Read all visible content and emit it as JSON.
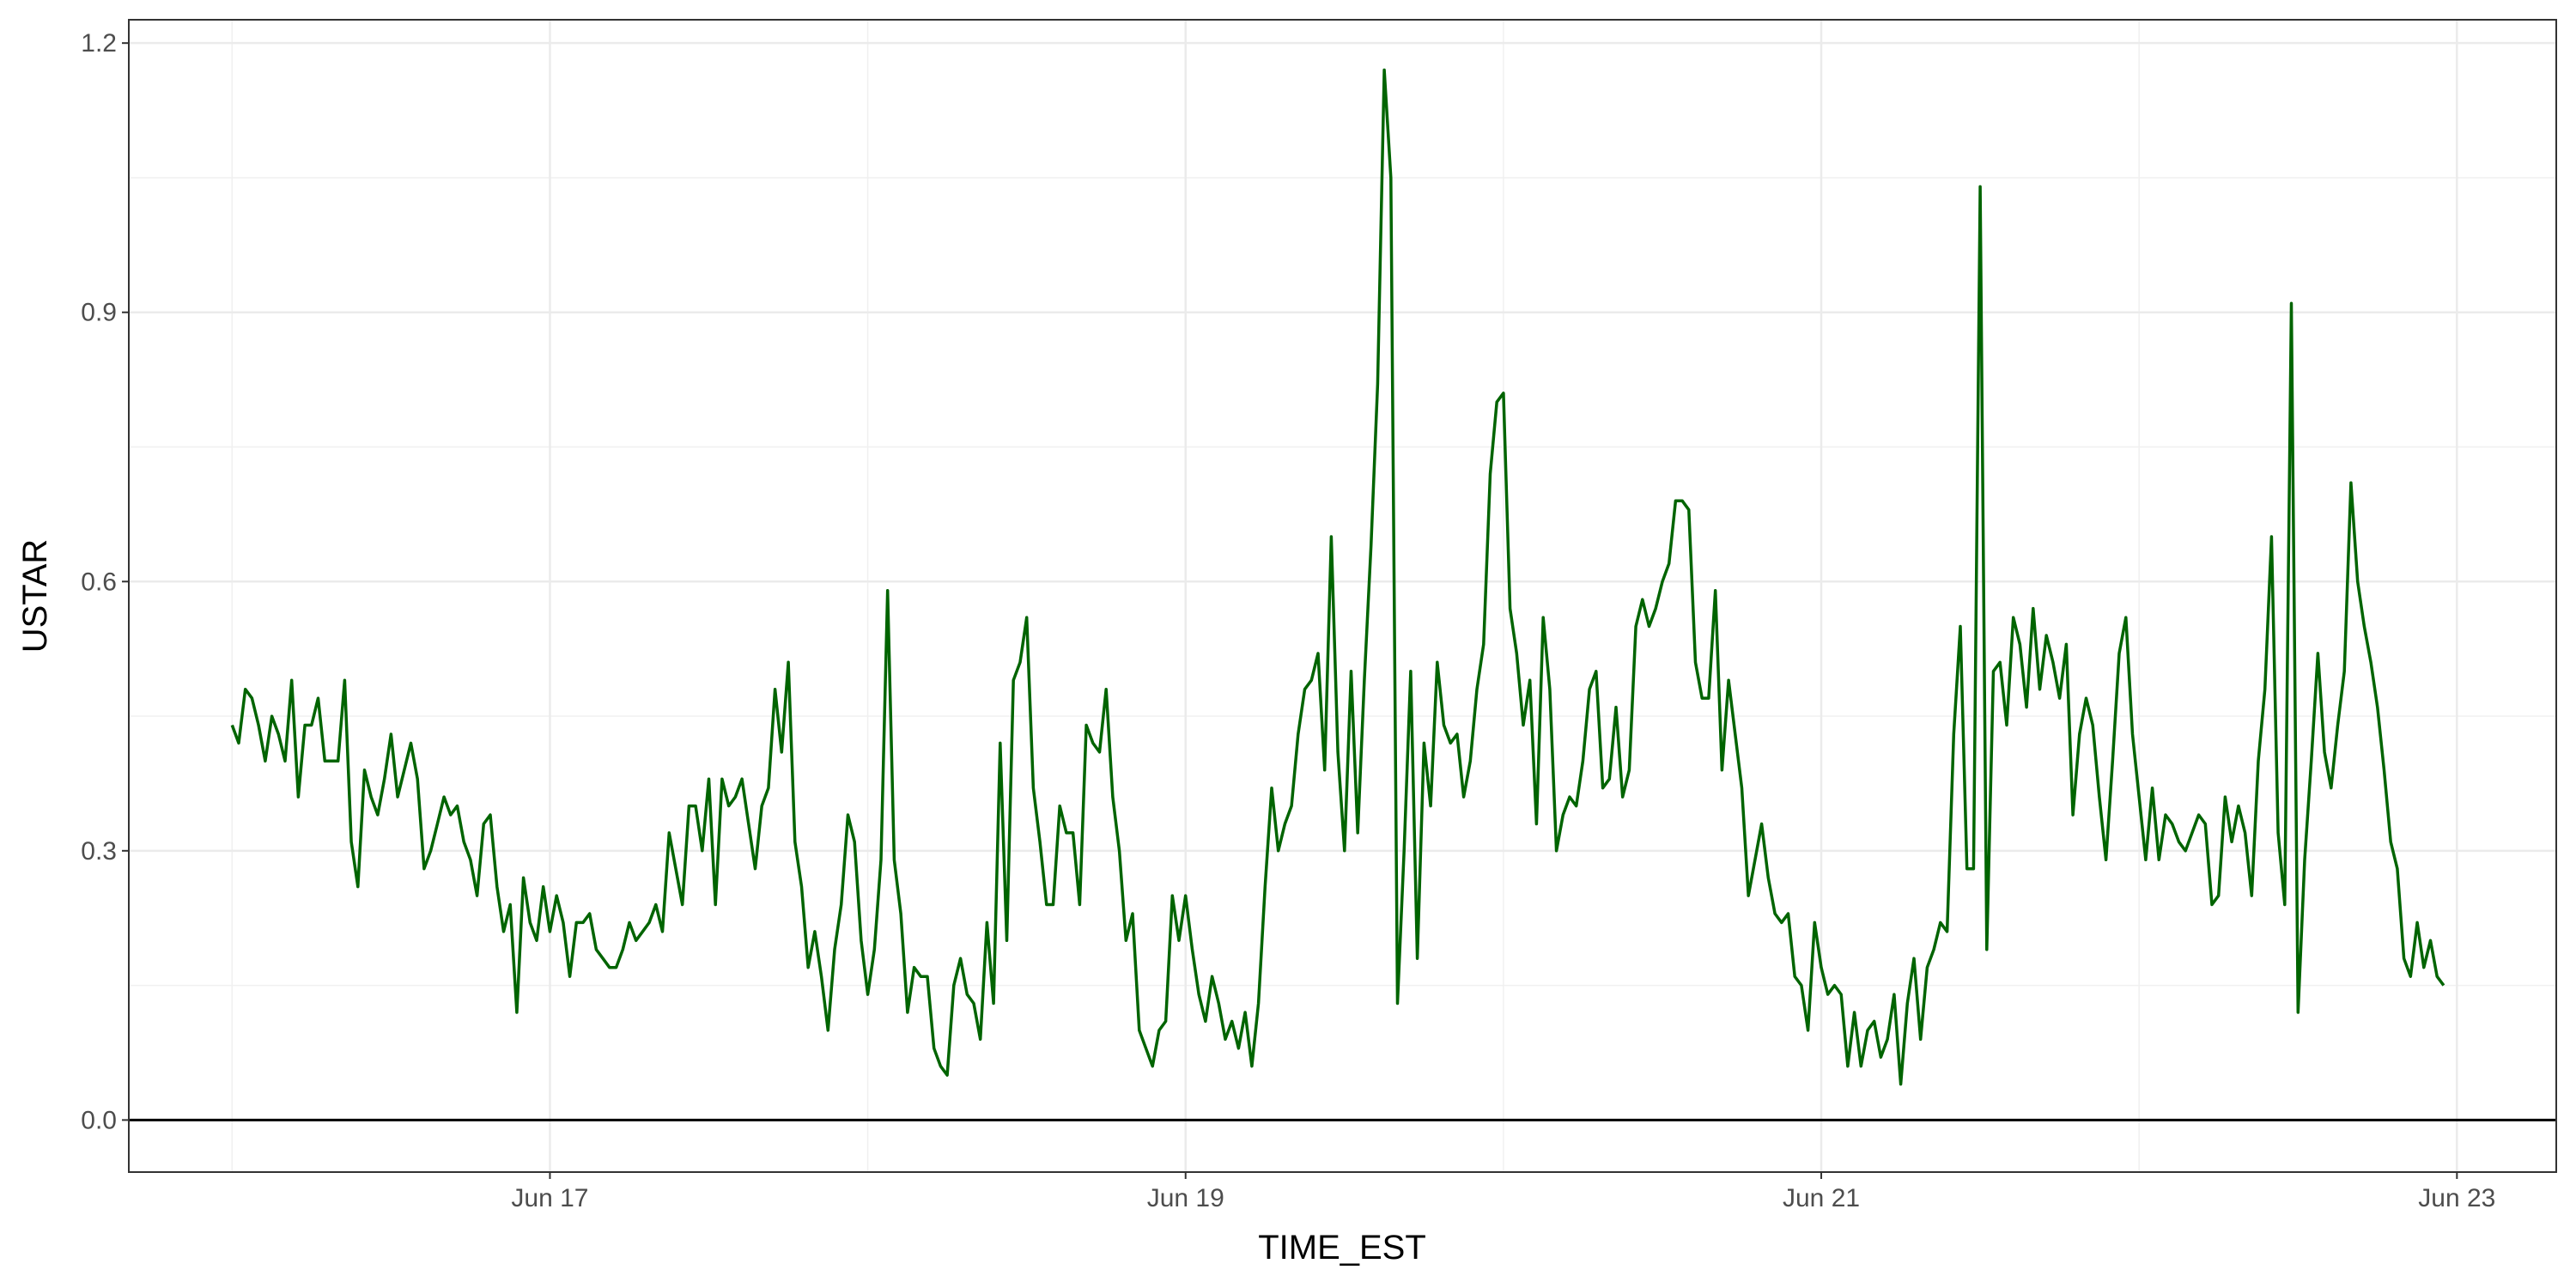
{
  "chart_data": {
    "type": "line",
    "xlabel": "TIME_EST",
    "ylabel": "USTAR",
    "x_start": "Jun 16 00:00",
    "x_step_hours": 0.5,
    "x_ticks": [
      {
        "hour": 24,
        "label": "Jun 17"
      },
      {
        "hour": 72,
        "label": "Jun 19"
      },
      {
        "hour": 120,
        "label": "Jun 21"
      },
      {
        "hour": 168,
        "label": "Jun 23"
      }
    ],
    "y_ticks": [
      {
        "value": 0.0,
        "label": "0.0"
      },
      {
        "value": 0.3,
        "label": "0.3"
      },
      {
        "value": 0.6,
        "label": "0.6"
      },
      {
        "value": 0.9,
        "label": "0.9"
      },
      {
        "value": 1.2,
        "label": "1.2"
      }
    ],
    "xlim_hours": [
      -7.8,
      175.5
    ],
    "ylim": [
      -0.058,
      1.226
    ],
    "grid": true,
    "hline_y": 0,
    "series": [
      {
        "color": "#006400",
        "values": [
          0.44,
          0.42,
          0.48,
          0.47,
          0.44,
          0.4,
          0.45,
          0.43,
          0.4,
          0.49,
          0.36,
          0.44,
          0.44,
          0.47,
          0.4,
          0.4,
          0.4,
          0.49,
          0.31,
          0.26,
          0.39,
          0.36,
          0.34,
          0.38,
          0.43,
          0.36,
          0.39,
          0.42,
          0.38,
          0.28,
          0.3,
          0.33,
          0.36,
          0.34,
          0.35,
          0.31,
          0.29,
          0.25,
          0.33,
          0.34,
          0.26,
          0.21,
          0.24,
          0.12,
          0.27,
          0.22,
          0.2,
          0.26,
          0.21,
          0.25,
          0.22,
          0.16,
          0.22,
          0.22,
          0.23,
          0.19,
          0.18,
          0.17,
          0.17,
          0.19,
          0.22,
          0.2,
          0.21,
          0.22,
          0.24,
          0.21,
          0.32,
          0.28,
          0.24,
          0.35,
          0.35,
          0.3,
          0.38,
          0.24,
          0.38,
          0.35,
          0.36,
          0.38,
          0.33,
          0.28,
          0.35,
          0.37,
          0.48,
          0.41,
          0.51,
          0.31,
          0.26,
          0.17,
          0.21,
          0.16,
          0.1,
          0.19,
          0.24,
          0.34,
          0.31,
          0.2,
          0.14,
          0.19,
          0.29,
          0.59,
          0.29,
          0.23,
          0.12,
          0.17,
          0.16,
          0.16,
          0.08,
          0.06,
          0.05,
          0.15,
          0.18,
          0.14,
          0.13,
          0.09,
          0.22,
          0.13,
          0.42,
          0.2,
          0.49,
          0.51,
          0.56,
          0.37,
          0.31,
          0.24,
          0.24,
          0.35,
          0.32,
          0.32,
          0.24,
          0.44,
          0.42,
          0.41,
          0.48,
          0.36,
          0.3,
          0.2,
          0.23,
          0.1,
          0.08,
          0.06,
          0.1,
          0.11,
          0.25,
          0.2,
          0.25,
          0.19,
          0.14,
          0.11,
          0.16,
          0.13,
          0.09,
          0.11,
          0.08,
          0.12,
          0.06,
          0.13,
          0.26,
          0.37,
          0.3,
          0.33,
          0.35,
          0.43,
          0.48,
          0.49,
          0.52,
          0.39,
          0.65,
          0.41,
          0.3,
          0.5,
          0.32,
          0.49,
          0.64,
          0.82,
          1.17,
          1.05,
          0.13,
          0.3,
          0.5,
          0.18,
          0.42,
          0.35,
          0.51,
          0.44,
          0.42,
          0.43,
          0.36,
          0.4,
          0.48,
          0.53,
          0.72,
          0.8,
          0.81,
          0.57,
          0.52,
          0.44,
          0.49,
          0.33,
          0.56,
          0.48,
          0.3,
          0.34,
          0.36,
          0.35,
          0.4,
          0.48,
          0.5,
          0.37,
          0.38,
          0.46,
          0.36,
          0.39,
          0.55,
          0.58,
          0.55,
          0.57,
          0.6,
          0.62,
          0.69,
          0.69,
          0.68,
          0.51,
          0.47,
          0.47,
          0.59,
          0.39,
          0.49,
          0.43,
          0.37,
          0.25,
          0.29,
          0.33,
          0.27,
          0.23,
          0.22,
          0.23,
          0.16,
          0.15,
          0.1,
          0.22,
          0.17,
          0.14,
          0.15,
          0.14,
          0.06,
          0.12,
          0.06,
          0.1,
          0.11,
          0.07,
          0.09,
          0.14,
          0.04,
          0.13,
          0.18,
          0.09,
          0.17,
          0.19,
          0.22,
          0.21,
          0.43,
          0.55,
          0.28,
          0.28,
          1.04,
          0.19,
          0.5,
          0.51,
          0.44,
          0.56,
          0.53,
          0.46,
          0.57,
          0.48,
          0.54,
          0.51,
          0.47,
          0.53,
          0.34,
          0.43,
          0.47,
          0.44,
          0.36,
          0.29,
          0.4,
          0.52,
          0.56,
          0.43,
          0.36,
          0.29,
          0.37,
          0.29,
          0.34,
          0.33,
          0.31,
          0.3,
          0.32,
          0.34,
          0.33,
          0.24,
          0.25,
          0.36,
          0.31,
          0.35,
          0.32,
          0.25,
          0.4,
          0.48,
          0.65,
          0.32,
          0.24,
          0.91,
          0.12,
          0.29,
          0.4,
          0.52,
          0.41,
          0.37,
          0.44,
          0.5,
          0.71,
          0.6,
          0.55,
          0.51,
          0.46,
          0.39,
          0.31,
          0.28,
          0.18,
          0.16,
          0.22,
          0.17,
          0.2,
          0.16,
          0.15
        ]
      }
    ]
  }
}
